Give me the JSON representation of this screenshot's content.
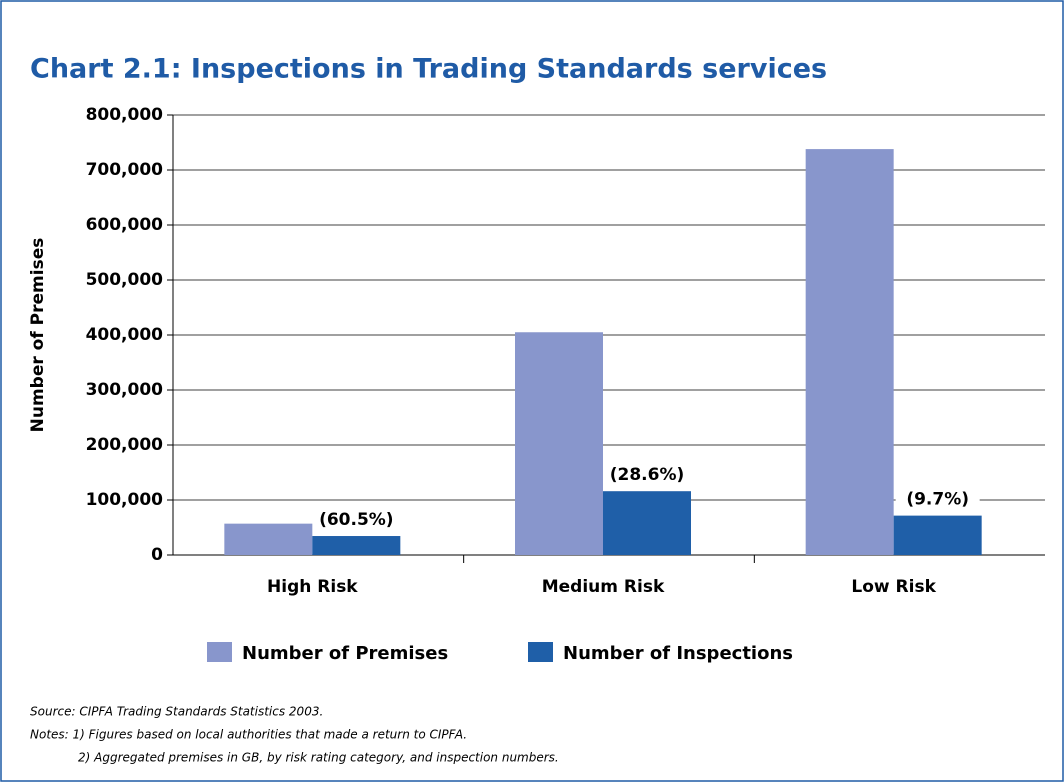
{
  "chart_data": {
    "type": "bar",
    "title": "Chart 2.1: Inspections in Trading Standards services",
    "y_label": "Number of Premises",
    "categories": [
      "High Risk",
      "Medium Risk",
      "Low Risk"
    ],
    "series": [
      {
        "name": "Number of Premises",
        "color": "#8896cc",
        "values": [
          57000,
          405000,
          738000
        ]
      },
      {
        "name": "Number of Inspections",
        "color": "#1f5fa8",
        "values": [
          34500,
          116000,
          71600
        ]
      }
    ],
    "share_labels": [
      "(60.5%)",
      "(28.6%)",
      "(9.7%)"
    ],
    "ylim": [
      0,
      800000
    ],
    "yticks": [
      0,
      {
        "value": 100000,
        "label": "100,000"
      },
      {
        "value": 200000,
        "label": "200,000"
      },
      {
        "value": 300000,
        "label": "300,000"
      },
      {
        "value": 400000,
        "label": "400,000"
      },
      {
        "value": 500000,
        "label": "500,000"
      },
      {
        "value": 600000,
        "label": "600,000"
      },
      {
        "value": 700000,
        "label": "700,000"
      },
      {
        "value": 800000,
        "label": "800,000"
      }
    ],
    "grid": true,
    "notes": [
      "Source: CIPFA Trading Standards Statistics 2003.",
      "Notes: 1) Figures based on local authorities that made a return to CIPFA.",
      "2) Aggregated premises in GB, by risk rating category, and inspection numbers."
    ]
  }
}
